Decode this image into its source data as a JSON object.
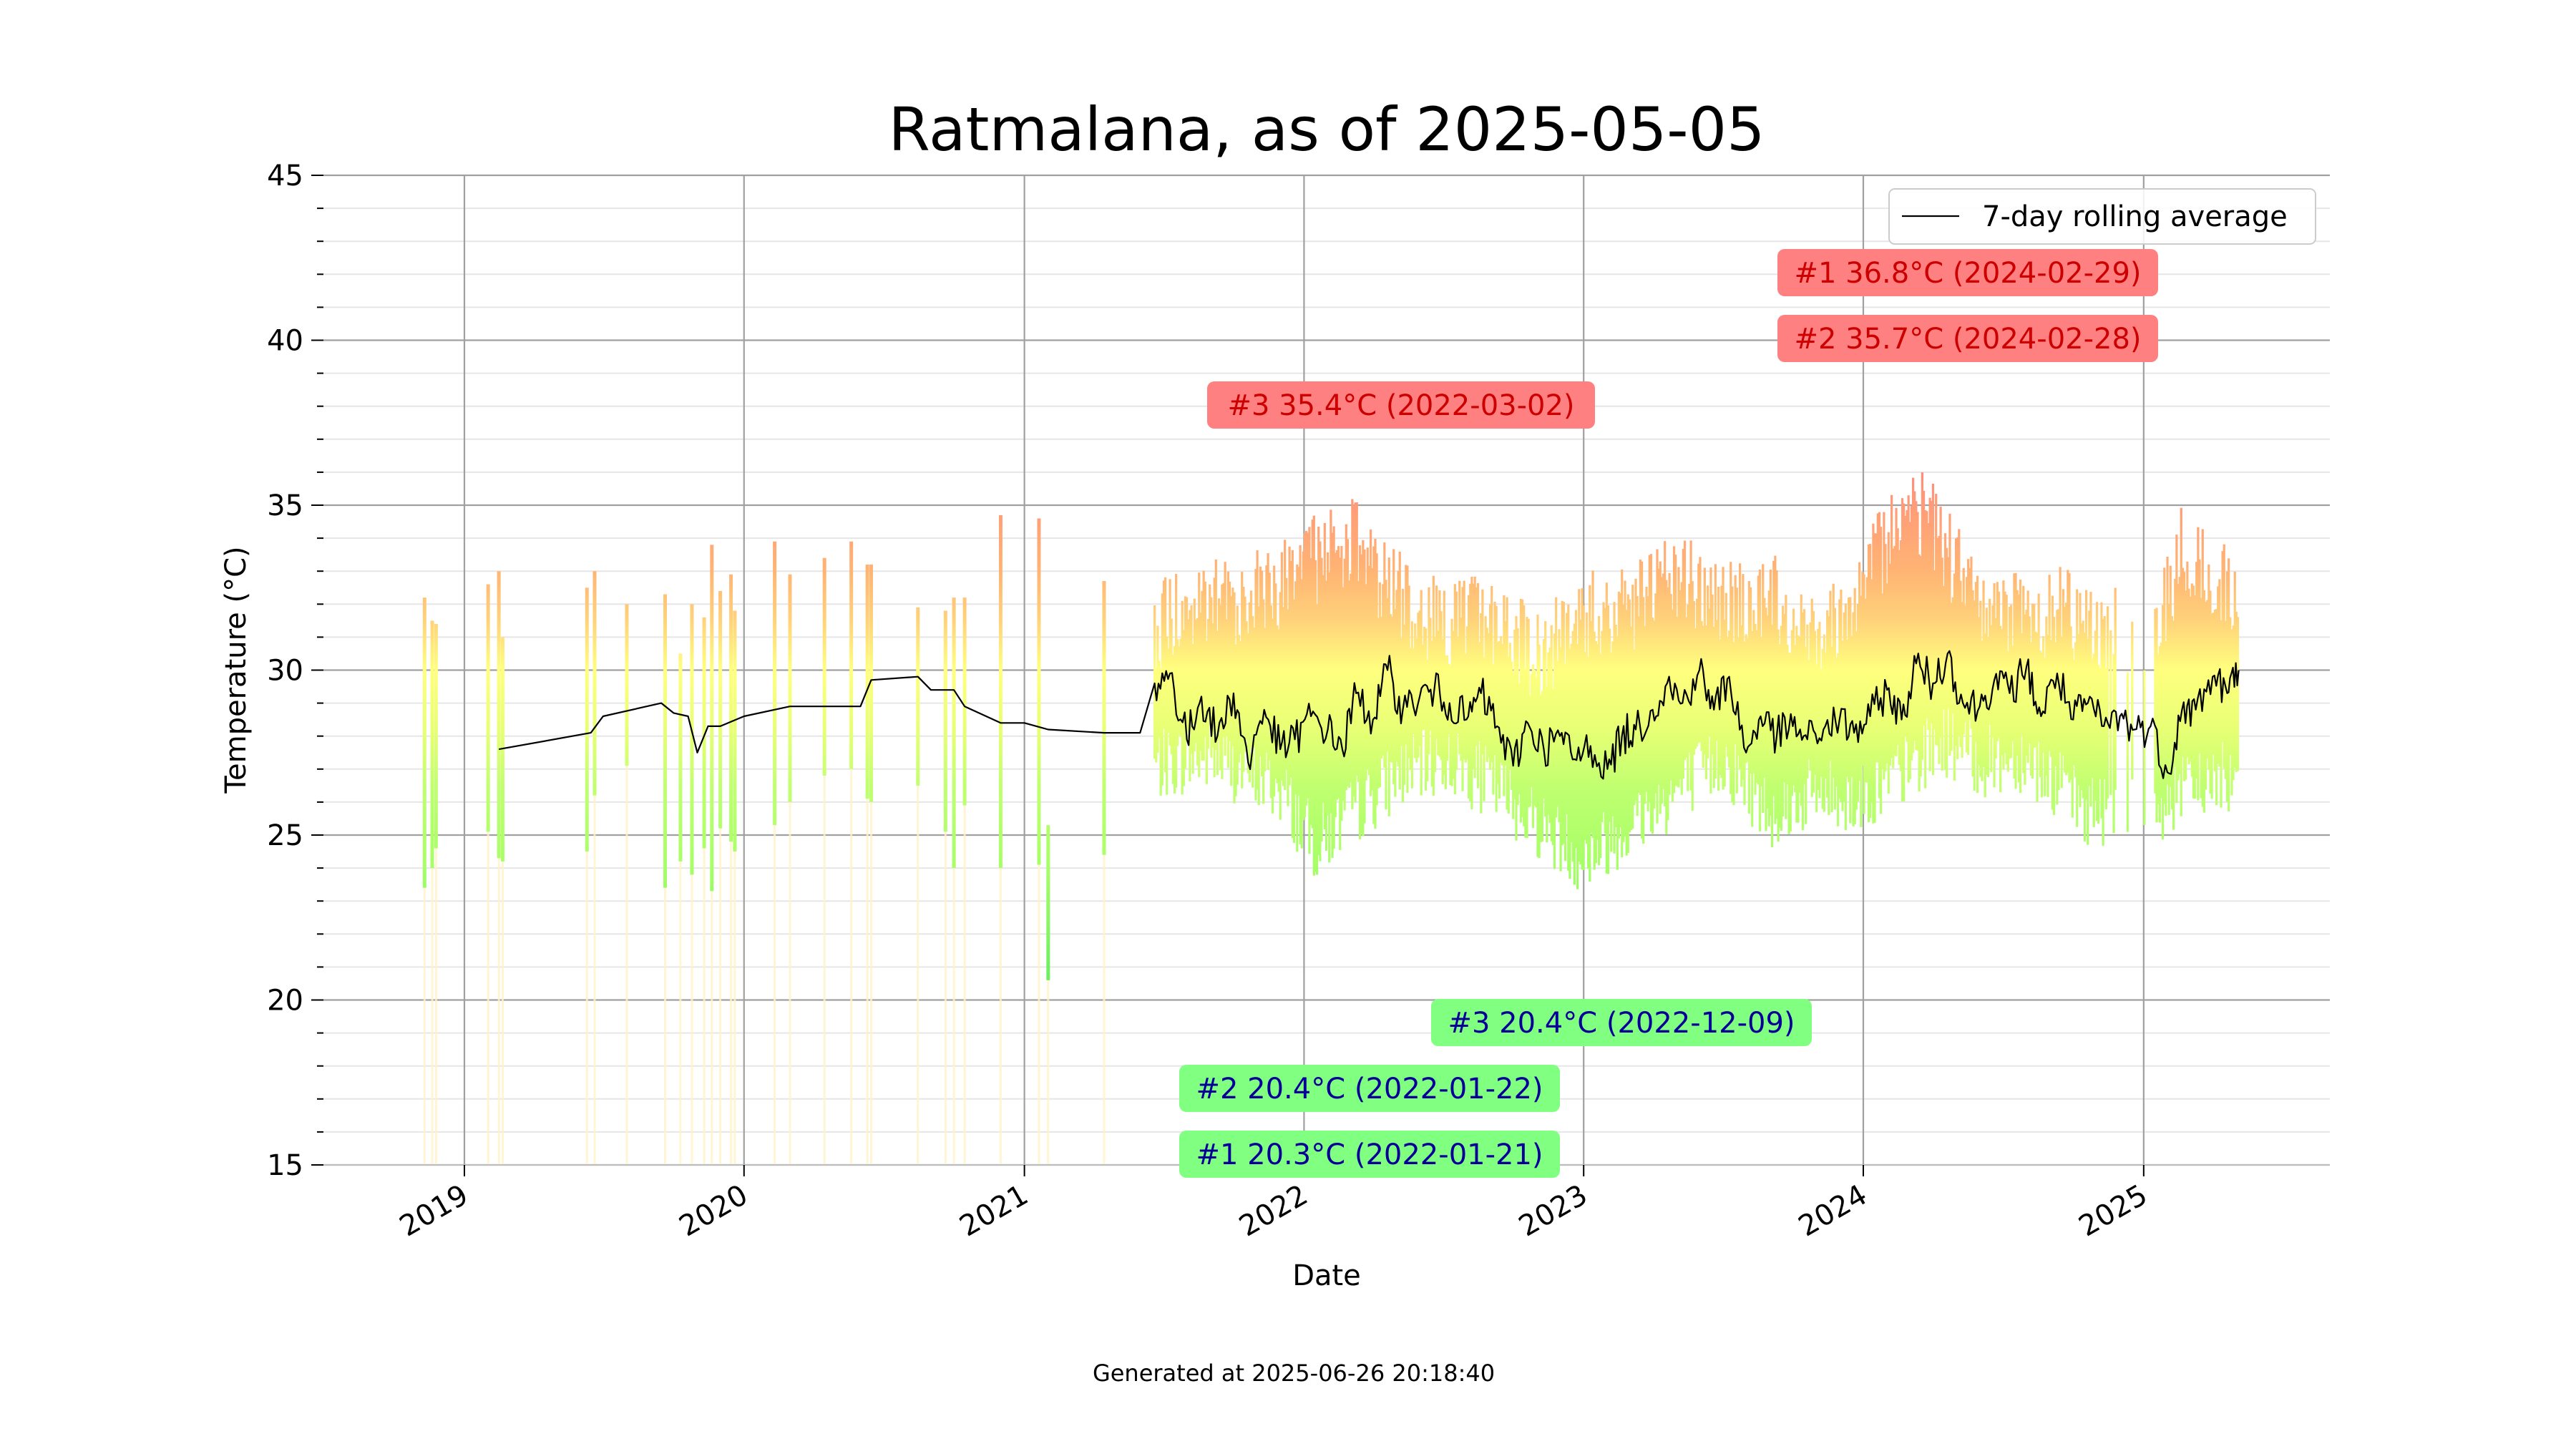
{
  "footer": {
    "generated": "Generated at 2025-06-26 20:18:40"
  },
  "chart_data": {
    "type": "line",
    "title": "Ratmalana, as of 2025-05-05",
    "xlabel": "Date",
    "ylabel": "Temperature (°C)",
    "xlim": [
      "2018-07-01",
      "2025-09-01"
    ],
    "ylim": [
      15,
      45
    ],
    "x_ticks": [
      "2019",
      "2020",
      "2021",
      "2022",
      "2023",
      "2024",
      "2025"
    ],
    "y_ticks": [
      15,
      20,
      25,
      30,
      35,
      40,
      45
    ],
    "grid": true,
    "legend": {
      "position": "top-right",
      "entries": [
        "7-day rolling average"
      ]
    },
    "series": [
      {
        "name": "7-day rolling average",
        "color": "#000000",
        "x": [
          "2019-02-15",
          "2019-06-15",
          "2019-07-01",
          "2019-09-15",
          "2019-10-01",
          "2019-10-20",
          "2019-11-01",
          "2019-11-15",
          "2019-12-01",
          "2020-01-01",
          "2020-03-01",
          "2020-06-01",
          "2020-06-15",
          "2020-08-15",
          "2020-09-01",
          "2020-10-01",
          "2020-10-15",
          "2020-12-01",
          "2021-01-01",
          "2021-02-01",
          "2021-04-15",
          "2021-06-01",
          "2021-06-20",
          "2021-07-10",
          "2021-08-01",
          "2021-08-20",
          "2021-09-10",
          "2021-10-01",
          "2021-10-20",
          "2021-11-10",
          "2021-12-01",
          "2021-12-20",
          "2022-01-10",
          "2022-02-01",
          "2022-02-20",
          "2022-03-10",
          "2022-04-01",
          "2022-04-20",
          "2022-05-10",
          "2022-06-01",
          "2022-06-20",
          "2022-07-10",
          "2022-08-01",
          "2022-08-20",
          "2022-09-10",
          "2022-10-01",
          "2022-10-20",
          "2022-11-10",
          "2022-12-01",
          "2022-12-20",
          "2023-01-10",
          "2023-02-01",
          "2023-02-20",
          "2023-03-10",
          "2023-04-01",
          "2023-04-20",
          "2023-05-10",
          "2023-06-01",
          "2023-06-20",
          "2023-07-10",
          "2023-08-01",
          "2023-08-20",
          "2023-09-10",
          "2023-10-01",
          "2023-10-20",
          "2023-11-10",
          "2023-12-01",
          "2023-12-20",
          "2024-01-10",
          "2024-02-01",
          "2024-02-20",
          "2024-03-10",
          "2024-04-01",
          "2024-04-20",
          "2024-05-10",
          "2024-06-01",
          "2024-06-20",
          "2024-07-10",
          "2024-08-01",
          "2024-08-20",
          "2024-09-10",
          "2024-10-01",
          "2024-10-20",
          "2024-11-10",
          "2024-12-01",
          "2024-12-20",
          "2025-01-10",
          "2025-02-01",
          "2025-02-20",
          "2025-03-10",
          "2025-04-01",
          "2025-04-20",
          "2025-05-05"
        ],
        "y": [
          27.6,
          28.1,
          28.6,
          29.0,
          28.7,
          28.6,
          27.5,
          28.3,
          28.3,
          28.6,
          28.9,
          28.9,
          29.7,
          29.8,
          29.4,
          29.4,
          28.9,
          28.4,
          28.4,
          28.2,
          28.1,
          28.1,
          29.6,
          29.9,
          27.9,
          29.2,
          28.0,
          29.3,
          27.2,
          28.8,
          27.6,
          27.9,
          28.6,
          28.2,
          27.6,
          29.3,
          28.5,
          30.0,
          28.8,
          29.2,
          29.4,
          29.0,
          28.5,
          29.3,
          28.3,
          27.1,
          28.4,
          27.6,
          28.0,
          27.3,
          27.7,
          27.0,
          28.0,
          28.2,
          28.8,
          29.6,
          29.0,
          30.0,
          28.8,
          29.8,
          27.5,
          28.6,
          28.0,
          28.3,
          27.9,
          28.2,
          28.5,
          28.1,
          28.6,
          29.4,
          28.5,
          30.2,
          29.6,
          30.5,
          29.0,
          28.9,
          29.7,
          29.3,
          30.1,
          28.6,
          29.9,
          28.5,
          29.0,
          28.3,
          28.6,
          28.2,
          28.3,
          26.9,
          28.8,
          28.8,
          29.8,
          29.3,
          30.0
        ]
      }
    ],
    "annotations": [
      {
        "group": "max",
        "text": "#1 36.8°C (2024-02-29)",
        "value": 36.8,
        "date": "2024-02-29"
      },
      {
        "group": "max",
        "text": "#2 35.7°C (2024-02-28)",
        "value": 35.7,
        "date": "2024-02-28"
      },
      {
        "group": "max",
        "text": "#3 35.4°C (2022-03-02)",
        "value": 35.4,
        "date": "2022-03-02"
      },
      {
        "group": "min",
        "text": "#3 20.4°C (2022-12-09)",
        "value": 20.4,
        "date": "2022-12-09"
      },
      {
        "group": "min",
        "text": "#2 20.4°C (2022-01-22)",
        "value": 20.4,
        "date": "2022-01-22"
      },
      {
        "group": "min",
        "text": "#1 20.3°C (2022-01-21)",
        "value": 20.3,
        "date": "2022-01-21"
      }
    ],
    "range_bars": {
      "description_colors": {
        "hot": "#ff7f7f",
        "warm": "#ffb070",
        "mild": "#ffff80",
        "cool": "#b8ff70"
      },
      "sparse_periods": [
        [
          "2018-11-10",
          23.4,
          32.2
        ],
        [
          "2018-11-20",
          24.0,
          31.5
        ],
        [
          "2018-11-25",
          24.6,
          31.4
        ],
        [
          "2019-02-01",
          25.1,
          32.6
        ],
        [
          "2019-02-15",
          24.3,
          33.0
        ],
        [
          "2019-02-20",
          24.2,
          31.0
        ],
        [
          "2019-06-10",
          24.5,
          32.5
        ],
        [
          "2019-06-20",
          26.2,
          33.0
        ],
        [
          "2019-08-01",
          27.1,
          32.0
        ],
        [
          "2019-09-20",
          23.4,
          32.3
        ],
        [
          "2019-10-10",
          24.2,
          30.5
        ],
        [
          "2019-10-25",
          23.8,
          32.0
        ],
        [
          "2019-11-10",
          24.6,
          31.6
        ],
        [
          "2019-11-20",
          23.3,
          33.8
        ],
        [
          "2019-12-01",
          25.2,
          32.4
        ],
        [
          "2019-12-15",
          24.8,
          32.9
        ],
        [
          "2019-12-20",
          24.5,
          31.8
        ],
        [
          "2020-02-10",
          25.3,
          33.9
        ],
        [
          "2020-03-01",
          26.0,
          32.9
        ],
        [
          "2020-04-15",
          26.8,
          33.4
        ],
        [
          "2020-05-20",
          27.0,
          33.9
        ],
        [
          "2020-06-10",
          26.1,
          33.2
        ],
        [
          "2020-06-15",
          26.0,
          33.2
        ],
        [
          "2020-08-15",
          26.5,
          31.9
        ],
        [
          "2020-09-20",
          25.1,
          31.8
        ],
        [
          "2020-10-01",
          24.0,
          32.2
        ],
        [
          "2020-10-15",
          25.9,
          32.2
        ],
        [
          "2020-12-01",
          24.0,
          34.7
        ],
        [
          "2021-01-20",
          24.1,
          34.6
        ],
        [
          "2021-02-01",
          20.6,
          25.3
        ],
        [
          "2021-04-15",
          24.4,
          32.7
        ]
      ],
      "dense_start": "2021-06-20",
      "dense_end": "2025-05-05",
      "dense_gaps": [
        [
          "2024-11-15",
          "2025-01-15"
        ]
      ],
      "envelope": {
        "x": [
          "2021-06-20",
          "2021-09-01",
          "2021-12-01",
          "2022-01-15",
          "2022-03-01",
          "2022-05-01",
          "2022-07-01",
          "2022-09-01",
          "2022-11-01",
          "2023-01-01",
          "2023-03-01",
          "2023-05-01",
          "2023-07-01",
          "2023-09-01",
          "2023-11-01",
          "2024-01-01",
          "2024-02-28",
          "2024-04-15",
          "2024-06-01",
          "2024-08-01",
          "2024-10-15",
          "2025-01-15",
          "2025-02-20",
          "2025-04-01",
          "2025-05-05"
        ],
        "min": [
          26.0,
          26.3,
          25.3,
          23.6,
          24.5,
          25.7,
          26.2,
          25.5,
          24.3,
          23.2,
          24.2,
          25.2,
          26.2,
          24.6,
          25.2,
          25.0,
          25.9,
          26.8,
          26.1,
          26.3,
          24.7,
          24.6,
          25.2,
          25.6,
          25.7
        ],
        "max": [
          32.8,
          33.3,
          34.0,
          34.7,
          35.4,
          33.7,
          32.8,
          33.0,
          31.8,
          33.0,
          33.2,
          34.2,
          33.4,
          33.6,
          32.7,
          33.8,
          36.8,
          35.2,
          33.3,
          33.2,
          33.1,
          32.0,
          35.1,
          34.0,
          33.8
        ]
      }
    }
  }
}
